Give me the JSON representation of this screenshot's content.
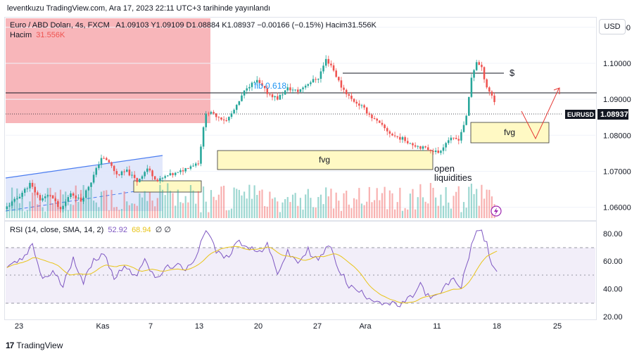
{
  "caption": "leventkuzu TradingView.com, Ara 17, 2023 22:11 UTC+3 tarihinde yayınlandı",
  "currency_button": "USD",
  "legend": {
    "symbol": "Euro / ABD Doları, 4s, FXCM",
    "ohlc": "A1.09103 Y1.09109 D1.08884 K1.08937 −0.00166 (−0.15%) Hacim31.556K",
    "volume_label": "Hacim",
    "volume_value": "31.556K"
  },
  "rsi_legend": {
    "label": "RSI (14, close, SMA, 14, 2)",
    "rsi_value": "52.92",
    "ma_value": "68.94",
    "extra": "∅ ∅"
  },
  "brand": "TradingView",
  "colors": {
    "up": "#26a69a",
    "down": "#ef5350",
    "rsi_line": "#7e57c2",
    "rsi_ma": "#e8c419",
    "fvg_fill": "#fff9c4",
    "supply_fill": "#f7a9ae",
    "channel": "#4a7cf0"
  },
  "chart_data": [
    {
      "type": "candlestick",
      "symbol": "EURUSD",
      "timeframe": "4s",
      "y_ticks": [
        "1.11000",
        "1.10000",
        "1.09000",
        "1.08000",
        "1.07000",
        "1.06000"
      ],
      "ylim": [
        1.057,
        1.1125
      ],
      "x_ticks": [
        "23",
        "Kas",
        "7",
        "13",
        "20",
        "27",
        "Ara",
        "11",
        "18",
        "25"
      ],
      "last_price_label": "EURUSD",
      "last_price": "1.08937",
      "price_path": [
        [
          0,
          1.0595
        ],
        [
          5,
          1.0625
        ],
        [
          10,
          1.0665
        ],
        [
          14,
          1.0622
        ],
        [
          18,
          1.0635
        ],
        [
          22,
          1.059
        ],
        [
          26,
          1.064
        ],
        [
          30,
          1.0618
        ],
        [
          34,
          1.0672
        ],
        [
          38,
          1.0738
        ],
        [
          41,
          1.0725
        ],
        [
          44,
          1.069
        ],
        [
          48,
          1.07
        ],
        [
          52,
          1.0672
        ],
        [
          56,
          1.0708
        ],
        [
          60,
          1.0673
        ],
        [
          64,
          1.0688
        ],
        [
          68,
          1.0695
        ],
        [
          72,
          1.0712
        ],
        [
          76,
          1.0725
        ],
        [
          79,
          1.0865
        ],
        [
          83,
          1.0855
        ],
        [
          87,
          1.084
        ],
        [
          91,
          1.088
        ],
        [
          95,
          1.0935
        ],
        [
          99,
          1.095
        ],
        [
          103,
          1.0918
        ],
        [
          107,
          1.0902
        ],
        [
          111,
          1.093
        ],
        [
          115,
          1.0922
        ],
        [
          119,
          1.0945
        ],
        [
          123,
          1.096
        ],
        [
          126,
          1.101
        ],
        [
          128,
          1.0995
        ],
        [
          132,
          1.0935
        ],
        [
          136,
          1.09
        ],
        [
          140,
          1.088
        ],
        [
          144,
          1.085
        ],
        [
          148,
          1.0825
        ],
        [
          152,
          1.08
        ],
        [
          156,
          1.079
        ],
        [
          160,
          1.0775
        ],
        [
          164,
          1.0765
        ],
        [
          167,
          1.076
        ],
        [
          170,
          1.0752
        ],
        [
          174,
          1.0788
        ],
        [
          178,
          1.079
        ],
        [
          181,
          1.085
        ],
        [
          183,
          1.096
        ],
        [
          185,
          1.1005
        ],
        [
          187,
          1.0985
        ],
        [
          189,
          1.0935
        ],
        [
          191,
          1.091
        ],
        [
          192,
          1.0894
        ]
      ],
      "volume_bars": 192
    },
    {
      "type": "line",
      "name": "RSI (14, close, SMA, 14, 2)",
      "y_ticks": [
        "80.00",
        "60.00",
        "40.00",
        "20.00"
      ],
      "ylim": [
        19,
        87
      ],
      "upper_band": 70,
      "lower_band": 30,
      "mid_line": 50,
      "rsi_path": [
        [
          0,
          56
        ],
        [
          6,
          61
        ],
        [
          10,
          71
        ],
        [
          14,
          47
        ],
        [
          18,
          52
        ],
        [
          22,
          42
        ],
        [
          26,
          63
        ],
        [
          30,
          45
        ],
        [
          34,
          60
        ],
        [
          38,
          67
        ],
        [
          42,
          47
        ],
        [
          46,
          58
        ],
        [
          50,
          48
        ],
        [
          54,
          63
        ],
        [
          58,
          46
        ],
        [
          62,
          54
        ],
        [
          66,
          58
        ],
        [
          70,
          52
        ],
        [
          74,
          64
        ],
        [
          78,
          84
        ],
        [
          82,
          67
        ],
        [
          86,
          62
        ],
        [
          90,
          74
        ],
        [
          94,
          72
        ],
        [
          98,
          66
        ],
        [
          102,
          71
        ],
        [
          106,
          52
        ],
        [
          110,
          66
        ],
        [
          114,
          59
        ],
        [
          118,
          68
        ],
        [
          122,
          60
        ],
        [
          126,
          72
        ],
        [
          130,
          55
        ],
        [
          134,
          42
        ],
        [
          138,
          38
        ],
        [
          142,
          34
        ],
        [
          146,
          31
        ],
        [
          150,
          29
        ],
        [
          154,
          28
        ],
        [
          158,
          33
        ],
        [
          162,
          43
        ],
        [
          166,
          32
        ],
        [
          170,
          37
        ],
        [
          174,
          47
        ],
        [
          178,
          42
        ],
        [
          182,
          72
        ],
        [
          185,
          84
        ],
        [
          188,
          72
        ],
        [
          190,
          58
        ],
        [
          192,
          53
        ]
      ]
    }
  ],
  "annotations": {
    "fib_label": "fib 0.618",
    "fvg_main": "fvg",
    "fvg_right": "fvg",
    "open_liq_line1": "open",
    "open_liq_line2": "liquidities",
    "dollar": "$"
  }
}
